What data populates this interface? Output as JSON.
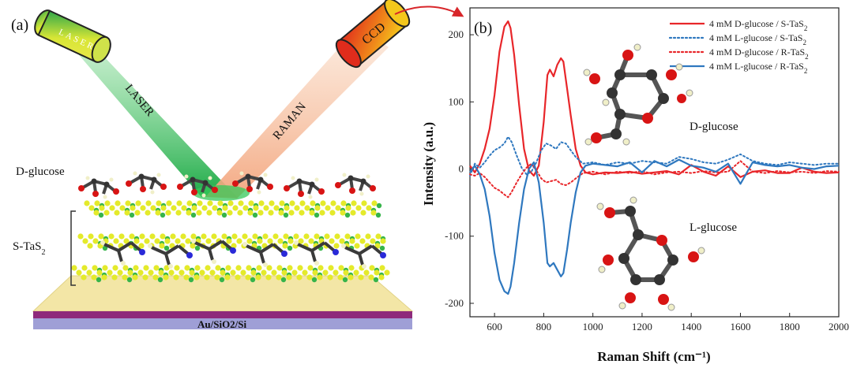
{
  "panel_a": {
    "label": "(a)",
    "laser_label": "LASER",
    "laser_device_text": "LASER",
    "raman_label": "RAMAN",
    "ccd_label": "CCD",
    "molecule_label": "D-glucose",
    "layer_label_main": "S-TaS",
    "layer_label_sub": "2",
    "substrate_label": "Au/SiO2/Si"
  },
  "panel_b": {
    "label": "(b)",
    "d_glucose_label": "D-glucose",
    "l_glucose_label": "L-glucose"
  },
  "colors": {
    "red": "#e8262a",
    "blue": "#2f78bf",
    "laser_green": "#1fb24a",
    "raman_peach": "#f2a07a",
    "substrate_top": "#f3e6a6",
    "substrate_au": "#8e2a7b",
    "substrate_si": "#9f9fd6"
  },
  "chart_data": {
    "type": "line",
    "title": "",
    "xlabel": "Raman Shift (cm⁻¹)",
    "ylabel": "Intensity (a.u.)",
    "xlim": [
      500,
      2000
    ],
    "ylim": [
      -220,
      240
    ],
    "xticks": [
      600,
      800,
      1000,
      1200,
      1400,
      1600,
      1800,
      2000
    ],
    "yticks": [
      -200,
      -100,
      0,
      100,
      200
    ],
    "legend_position": "top-right",
    "series": [
      {
        "name": "4 mM D-glucose / S-TaS2",
        "legend_main": "4 mM D-glucose / S-TaS",
        "legend_sub": "2",
        "color": "#e8262a",
        "style": "solid",
        "x": [
          500,
          520,
          540,
          560,
          580,
          600,
          620,
          640,
          655,
          665,
          680,
          700,
          720,
          740,
          760,
          780,
          800,
          815,
          825,
          840,
          855,
          870,
          880,
          895,
          910,
          930,
          950,
          970,
          1000,
          1050,
          1100,
          1150,
          1200,
          1250,
          1300,
          1350,
          1400,
          1450,
          1500,
          1550,
          1600,
          1650,
          1700,
          1750,
          1800,
          1850,
          1900,
          1950,
          2000
        ],
        "y": [
          5,
          -5,
          8,
          30,
          60,
          110,
          175,
          212,
          220,
          210,
          170,
          95,
          30,
          -2,
          -10,
          5,
          70,
          140,
          148,
          138,
          155,
          165,
          160,
          120,
          80,
          30,
          5,
          -5,
          -8,
          -5,
          -6,
          -4,
          -7,
          -5,
          -3,
          -8,
          6,
          -4,
          -10,
          4,
          -12,
          -4,
          -2,
          -6,
          -6,
          2,
          -4,
          -6,
          -5
        ]
      },
      {
        "name": "4 mM L-glucose / S-TaS2",
        "legend_main": "4 mM L-glucose / S-TaS",
        "legend_sub": "2",
        "color": "#2f78bf",
        "style": "dotted",
        "x": [
          500,
          520,
          540,
          560,
          580,
          600,
          620,
          640,
          655,
          670,
          690,
          710,
          730,
          750,
          770,
          790,
          810,
          830,
          850,
          870,
          890,
          910,
          930,
          960,
          1000,
          1050,
          1100,
          1150,
          1200,
          1250,
          1300,
          1350,
          1400,
          1450,
          1500,
          1550,
          1600,
          1650,
          1700,
          1750,
          1800,
          1850,
          1900,
          1950,
          2000
        ],
        "y": [
          -10,
          8,
          2,
          10,
          20,
          28,
          32,
          38,
          48,
          40,
          20,
          2,
          -8,
          -4,
          10,
          28,
          38,
          35,
          30,
          40,
          38,
          28,
          18,
          8,
          10,
          6,
          10,
          8,
          12,
          10,
          8,
          18,
          15,
          10,
          8,
          14,
          22,
          12,
          8,
          6,
          10,
          8,
          6,
          8,
          8
        ]
      },
      {
        "name": "4 mM D-glucose / R-TaS2",
        "legend_main": "4 mM D-glucose / R-TaS",
        "legend_sub": "2",
        "color": "#e8262a",
        "style": "dotted",
        "x": [
          500,
          520,
          540,
          560,
          580,
          600,
          620,
          640,
          655,
          670,
          690,
          710,
          730,
          750,
          770,
          790,
          810,
          830,
          850,
          870,
          890,
          910,
          930,
          960,
          1000,
          1050,
          1100,
          1150,
          1200,
          1250,
          1300,
          1350,
          1400,
          1450,
          1500,
          1550,
          1600,
          1650,
          1700,
          1750,
          1800,
          1850,
          1900,
          1950,
          2000
        ],
        "y": [
          -8,
          -10,
          -6,
          -12,
          -20,
          -28,
          -32,
          -38,
          -42,
          -34,
          -20,
          -8,
          2,
          8,
          -2,
          -14,
          -20,
          -18,
          -16,
          -22,
          -24,
          -20,
          -14,
          -6,
          -4,
          -8,
          -4,
          -6,
          -3,
          -8,
          -5,
          -4,
          -6,
          -3,
          -5,
          -4,
          12,
          -4,
          -6,
          -3,
          -5,
          -4,
          -6,
          -3,
          -4
        ]
      },
      {
        "name": "4 mM L-glucose / R-TaS2",
        "legend_main": "4 mM L-glucose / R-TaS",
        "legend_sub": "2",
        "color": "#2f78bf",
        "style": "solid",
        "x": [
          500,
          520,
          540,
          560,
          580,
          600,
          620,
          640,
          655,
          665,
          680,
          700,
          720,
          740,
          760,
          780,
          800,
          815,
          825,
          840,
          855,
          870,
          880,
          895,
          910,
          930,
          950,
          970,
          1000,
          1050,
          1100,
          1150,
          1200,
          1250,
          1300,
          1350,
          1400,
          1450,
          1500,
          1550,
          1600,
          1650,
          1700,
          1750,
          1800,
          1850,
          1900,
          1950,
          2000
        ],
        "y": [
          -5,
          5,
          -8,
          -30,
          -70,
          -125,
          -165,
          -182,
          -186,
          -175,
          -140,
          -80,
          -30,
          0,
          10,
          -20,
          -80,
          -140,
          -145,
          -140,
          -150,
          -160,
          -155,
          -120,
          -80,
          -35,
          -5,
          5,
          8,
          6,
          4,
          10,
          -5,
          12,
          4,
          14,
          5,
          2,
          -4,
          8,
          -22,
          10,
          6,
          4,
          6,
          2,
          0,
          4,
          5
        ]
      }
    ]
  }
}
